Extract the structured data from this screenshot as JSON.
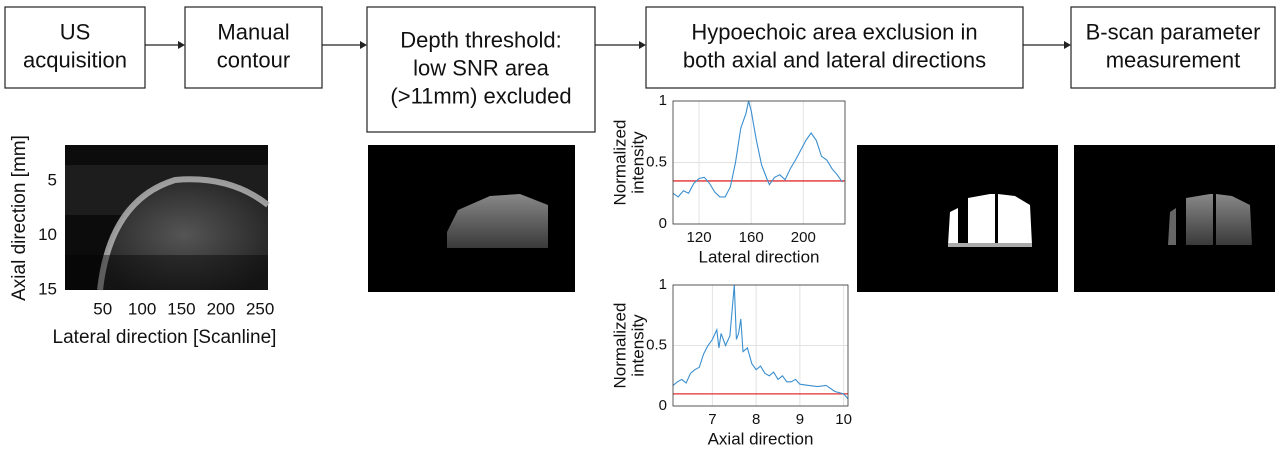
{
  "steps": [
    {
      "lines": [
        "US",
        "acquisition"
      ]
    },
    {
      "lines": [
        "Manual",
        "contour"
      ]
    },
    {
      "lines": [
        "Depth threshold:",
        "low SNR area",
        "(>11mm) excluded"
      ]
    },
    {
      "lines": [
        "Hypoechoic area exclusion in",
        "both axial and lateral directions"
      ]
    },
    {
      "lines": [
        "B-scan parameter",
        "measurement"
      ]
    }
  ],
  "ultrasound_image": {
    "xlabel": "Lateral direction [Scanline]",
    "ylabel": "Axial direction [mm]",
    "xlim": [
      2,
      260
    ],
    "ylim": [
      1.7,
      15
    ],
    "xticks": [
      50,
      100,
      150,
      200,
      250
    ],
    "yticks": [
      5,
      10,
      15
    ]
  },
  "lateral_profile": {
    "type": "line",
    "xlabel": "Lateral direction",
    "ylabel": [
      "Normalized",
      "intensity"
    ],
    "xlim": [
      100,
      232
    ],
    "ylim": [
      0,
      1
    ],
    "xticks": [
      120,
      160,
      200
    ],
    "yticks": [
      0,
      0.5,
      1
    ],
    "grid": true,
    "color": "#3a8fd0",
    "threshold": 0.35,
    "threshold_color": "#e03030",
    "x": [
      100,
      104,
      108,
      112,
      116,
      120,
      124,
      128,
      132,
      136,
      140,
      144,
      148,
      152,
      156,
      158,
      160,
      164,
      168,
      172,
      174,
      178,
      182,
      186,
      190,
      194,
      198,
      202,
      206,
      210,
      214,
      218,
      222,
      226,
      230
    ],
    "values": [
      0.25,
      0.22,
      0.27,
      0.25,
      0.33,
      0.37,
      0.38,
      0.33,
      0.26,
      0.22,
      0.22,
      0.3,
      0.5,
      0.78,
      0.9,
      1.0,
      0.92,
      0.68,
      0.48,
      0.37,
      0.32,
      0.38,
      0.4,
      0.36,
      0.45,
      0.52,
      0.6,
      0.68,
      0.74,
      0.68,
      0.55,
      0.52,
      0.45,
      0.4,
      0.34
    ]
  },
  "axial_profile": {
    "type": "line",
    "xlabel": "Axial direction",
    "ylabel": [
      "Normalized",
      "intensity"
    ],
    "xlim": [
      6.1,
      10.1
    ],
    "ylim": [
      0,
      1
    ],
    "xticks": [
      7,
      8,
      9,
      10
    ],
    "yticks": [
      0,
      0.5,
      1
    ],
    "grid": true,
    "color": "#3a8fd0",
    "threshold": 0.1,
    "threshold_color": "#e03030",
    "x": [
      6.1,
      6.2,
      6.3,
      6.4,
      6.5,
      6.6,
      6.7,
      6.8,
      6.9,
      7.0,
      7.1,
      7.15,
      7.2,
      7.3,
      7.4,
      7.5,
      7.55,
      7.6,
      7.65,
      7.7,
      7.8,
      7.9,
      8.0,
      8.1,
      8.2,
      8.3,
      8.4,
      8.5,
      8.6,
      8.7,
      8.8,
      8.9,
      9.0,
      9.2,
      9.4,
      9.6,
      9.8,
      10.0,
      10.1
    ],
    "values": [
      0.17,
      0.2,
      0.22,
      0.19,
      0.27,
      0.3,
      0.32,
      0.43,
      0.5,
      0.55,
      0.63,
      0.48,
      0.6,
      0.5,
      0.58,
      1.0,
      0.55,
      0.6,
      0.72,
      0.45,
      0.48,
      0.35,
      0.3,
      0.33,
      0.27,
      0.25,
      0.28,
      0.22,
      0.25,
      0.2,
      0.2,
      0.22,
      0.18,
      0.17,
      0.16,
      0.17,
      0.12,
      0.1,
      0.06
    ]
  }
}
